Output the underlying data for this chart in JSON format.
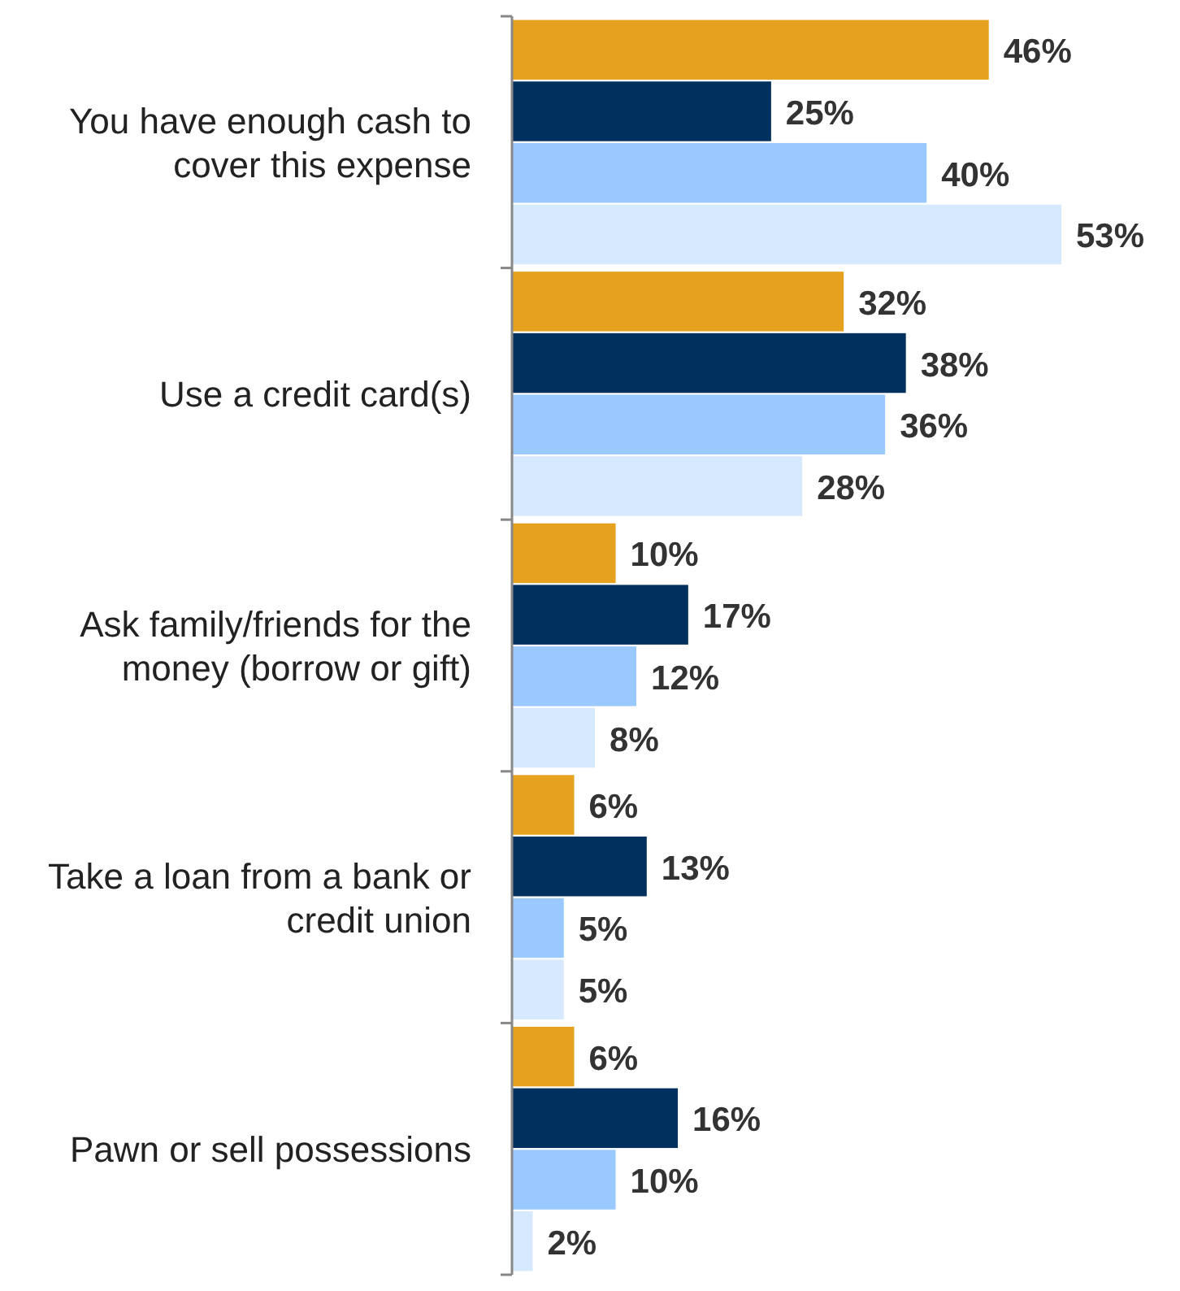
{
  "chart_data": {
    "type": "bar",
    "orientation": "horizontal",
    "categories": [
      "You have enough cash to cover this expense",
      "Use a credit card(s)",
      "Ask family/friends for the money (borrow or gift)",
      "Take a loan from a bank or credit union",
      "Pawn or sell possessions"
    ],
    "series": [
      {
        "color": "#e6a21f",
        "values": [
          46,
          32,
          10,
          6,
          6
        ],
        "value_labels": [
          "46%",
          "32%",
          "10%",
          "6%",
          "6%"
        ]
      },
      {
        "color": "#00305e",
        "values": [
          25,
          38,
          17,
          13,
          16
        ],
        "value_labels": [
          "25%",
          "38%",
          "17%",
          "13%",
          "16%"
        ]
      },
      {
        "color": "#99c9ff",
        "values": [
          40,
          36,
          12,
          5,
          10
        ],
        "value_labels": [
          "40%",
          "36%",
          "12%",
          "5%",
          "10%"
        ]
      },
      {
        "color": "#d6e9ff",
        "values": [
          53,
          28,
          8,
          5,
          2
        ],
        "value_labels": [
          "53%",
          "28%",
          "8%",
          "5%",
          "2%"
        ]
      }
    ]
  }
}
